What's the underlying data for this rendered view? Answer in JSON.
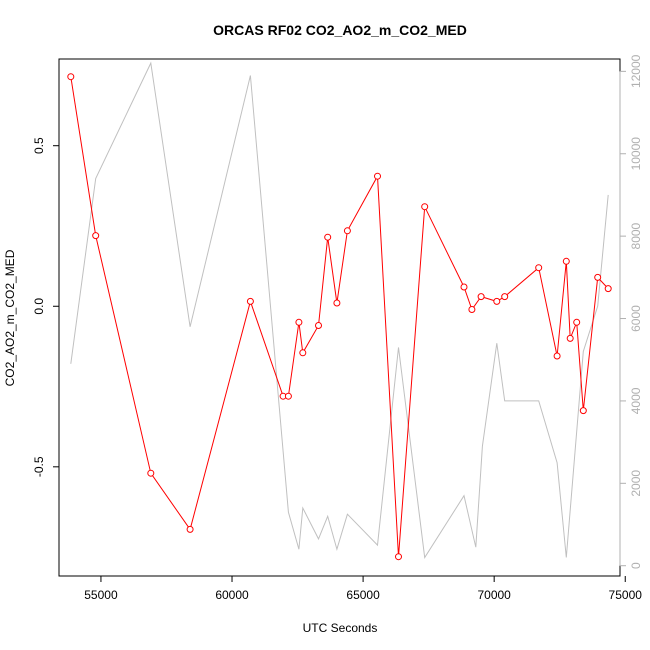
{
  "chart_data": {
    "type": "line",
    "title": "ORCAS RF02 CO2_AO2_m_CO2_MED",
    "xlabel": "UTC Seconds",
    "ylabel": "CO2_AO2_m_CO2_MED",
    "xlim": [
      53400,
      74800
    ],
    "ylim": [
      -0.84,
      0.77
    ],
    "y2lim": [
      -250,
      12300
    ],
    "x_ticks": [
      55000,
      60000,
      65000,
      70000,
      75000
    ],
    "y_ticks": [
      -0.5,
      0.0,
      0.5
    ],
    "y2_ticks": [
      0,
      2000,
      4000,
      6000,
      8000,
      10000,
      12000
    ],
    "grid": false,
    "colors": {
      "primary": "#ff0000",
      "secondary": "#c0c0c0",
      "axis": "#000000",
      "right_axis": "#b0b0b0"
    },
    "series": [
      {
        "axis": "left",
        "style": "line+circle-markers",
        "x": [
          53850,
          54800,
          56900,
          58400,
          60700,
          61950,
          62150,
          62550,
          62700,
          63300,
          63650,
          64000,
          64400,
          65550,
          66350,
          67350,
          68850,
          69150,
          69500,
          70100,
          70400,
          71700,
          72400,
          72750,
          72900,
          73150,
          73400,
          73950,
          74350
        ],
        "y": [
          0.715,
          0.22,
          -0.52,
          -0.695,
          0.015,
          -0.28,
          -0.28,
          -0.05,
          -0.145,
          -0.06,
          0.215,
          0.01,
          0.235,
          0.405,
          -0.78,
          0.31,
          0.06,
          -0.01,
          0.03,
          0.015,
          0.03,
          0.12,
          -0.155,
          0.14,
          -0.1,
          -0.05,
          -0.325,
          0.09,
          0.055
        ]
      },
      {
        "axis": "right",
        "style": "line",
        "x": [
          53850,
          54800,
          56900,
          58400,
          60700,
          62150,
          62550,
          62700,
          63300,
          63650,
          64000,
          64400,
          65550,
          66350,
          67350,
          68850,
          69300,
          69550,
          70100,
          70400,
          71700,
          72400,
          72750,
          73400,
          73950,
          74350
        ],
        "y": [
          4900,
          9400,
          12200,
          5800,
          11900,
          1300,
          400,
          1400,
          650,
          1200,
          400,
          1250,
          500,
          5300,
          200,
          1700,
          450,
          2900,
          5400,
          4000,
          4000,
          2500,
          200,
          5200,
          6300,
          9000
        ]
      }
    ]
  }
}
